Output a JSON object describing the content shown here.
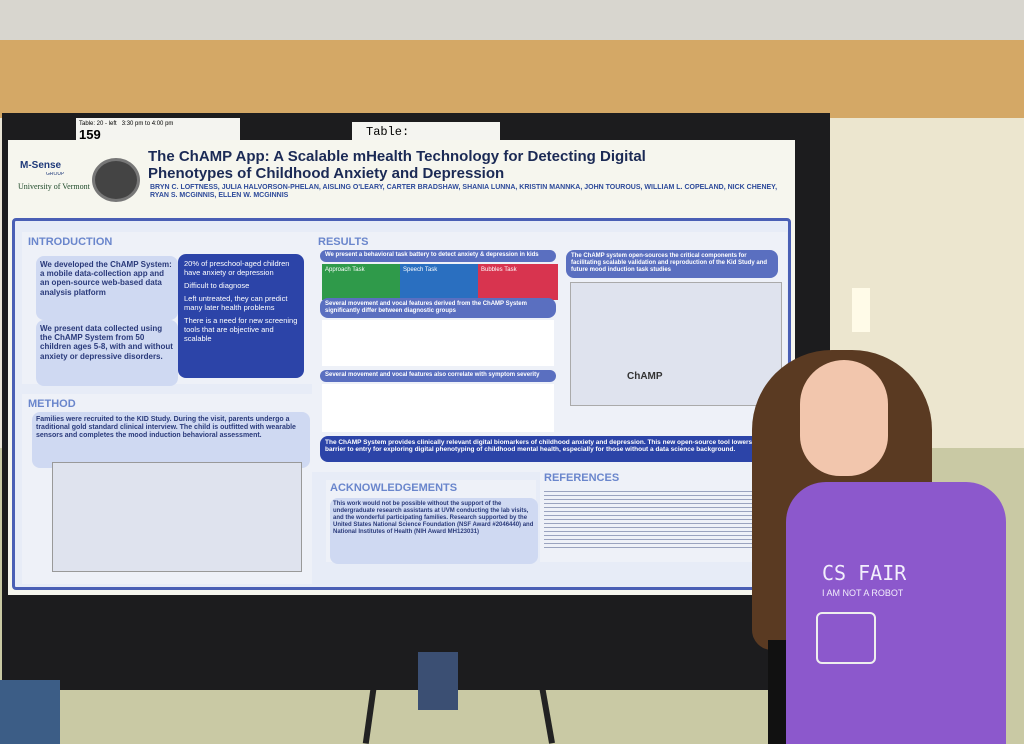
{
  "table_sign": {
    "slot": "Table: 20 - left",
    "time": "3:30 pm to 4:00 pm",
    "number": "159",
    "label": "Table:"
  },
  "poster": {
    "logo": "M-Sense",
    "logo_group": "GROUP",
    "university": "University of Vermont",
    "title": "The ChAMP App: A Scalable mHealth Technology for Detecting Digital Phenotypes of Childhood Anxiety and Depression",
    "authors": "BRYN C. LOFTNESS, JULIA HALVORSON-PHELAN, AISLING O'LEARY, CARTER BRADSHAW, SHANIA LUNNA, KRISTIN MANNKA, JOHN TOUROUS, WILLIAM L. COPELAND, NICK CHENEY, RYAN S. MCGINNIS, ELLEN W. MCGINNIS",
    "introduction": {
      "heading": "INTRODUCTION",
      "items": [
        "We developed the ChAMP System: a mobile data-collection app and an open-source web-based data analysis platform",
        "We present data collected using the ChAMP System from 50 children ages 5-8, with and without anxiety or depressive disorders."
      ],
      "bullets": [
        "20% of preschool-aged children have anxiety or depression",
        "Difficult to diagnose",
        "Left untreated, they can predict many later health problems",
        "There is a need for new screening tools that are objective and scalable"
      ]
    },
    "results": {
      "heading": "RESULTS",
      "battery": "We present a behavioral task battery to detect anxiety & depression in kids",
      "tasks": [
        "Approach Task",
        "Speech Task",
        "Bubbles Task"
      ],
      "differ": "Several movement and vocal features derived from the ChAMP System significantly differ between diagnostic groups",
      "correlate": "Several movement and vocal features also correlate with symptom severity",
      "open_source": "The ChAMP system open-sources the critical components for facilitating scalable validation and reproduction of the Kid Study and future mood induction task studies",
      "app_name": "ChAMP",
      "conclusion": "The ChAMP System provides clinically relevant digital biomarkers of childhood anxiety and depression. This new open-source tool lowers the barrier to entry for exploring digital phenotyping of childhood mental health, especially for those without a data science background."
    },
    "method": {
      "heading": "METHOD",
      "text": "Families were recruited to the KID Study. During the visit, parents undergo a traditional gold standard clinical interview. The child is outfitted with wearable sensors and completes the mood induction behavioral assessment."
    },
    "acknowledgements": {
      "heading": "ACKNOWLEDGEMENTS",
      "text": "This work would not be possible without the support of the undergraduate research assistants at UVM conducting the lab visits, and the wonderful participating families. Research supported by the United States National Science Foundation (NSF Award #2046440) and National Institutes of Health (NIH Award MH123031)"
    },
    "references": {
      "heading": "REFERENCES"
    }
  },
  "shirt": {
    "line1": "CS FAIR",
    "line2": "I AM NOT A ROBOT"
  }
}
